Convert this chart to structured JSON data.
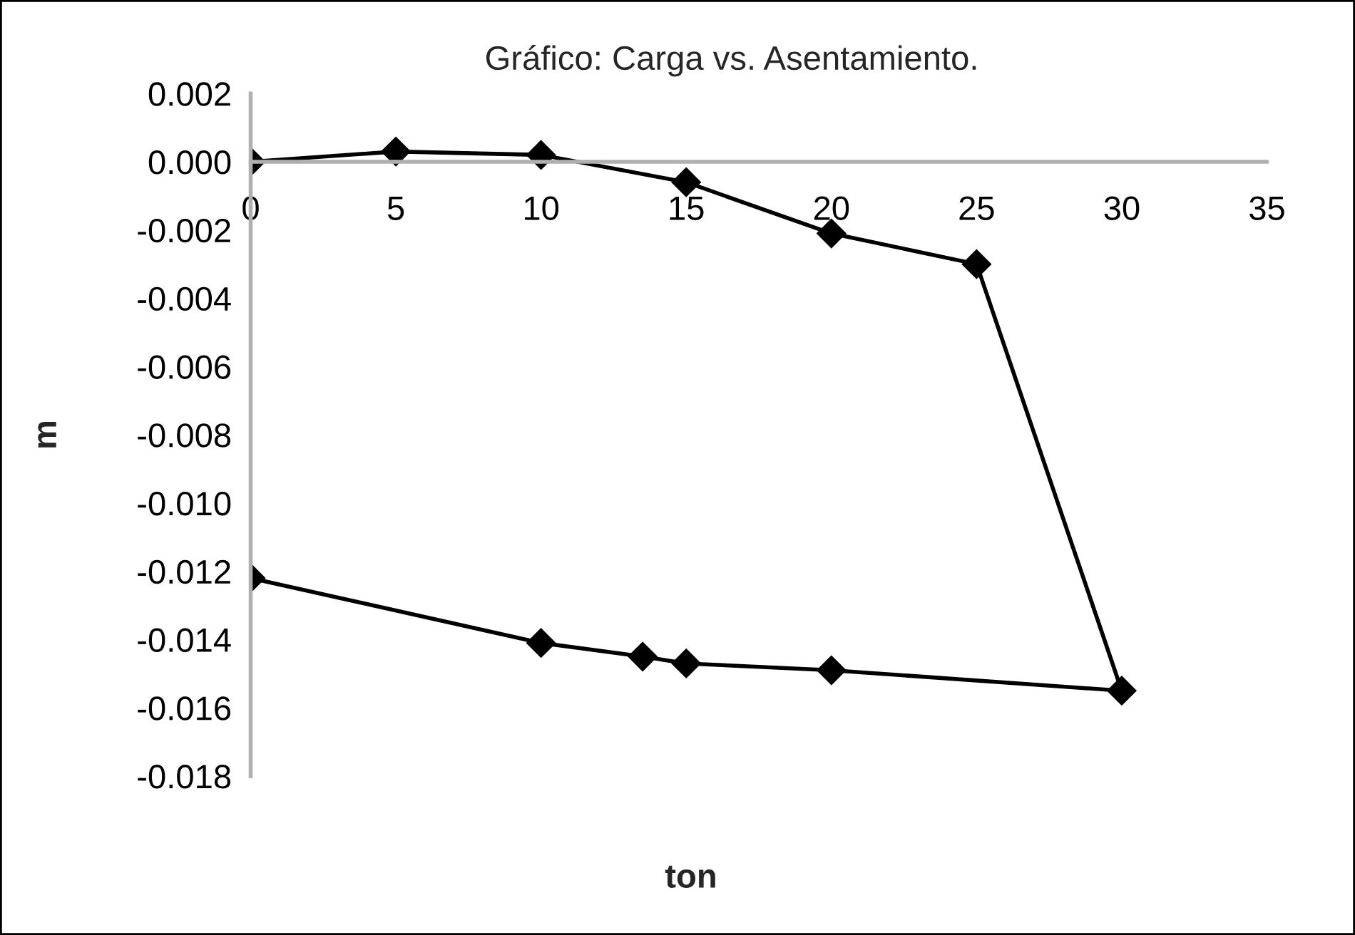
{
  "chart_data": {
    "type": "line",
    "title": "Gráfico: Carga vs. Asentamiento.",
    "xlabel": "ton",
    "ylabel": "m",
    "series": [
      {
        "color": "#000000",
        "x": [
          0,
          5,
          10,
          15,
          20,
          25,
          30,
          20,
          15,
          13.5,
          10,
          0
        ],
        "values": [
          0.0,
          0.0003,
          0.0002,
          -0.0006,
          -0.0021,
          -0.003,
          -0.0155,
          -0.0149,
          -0.0147,
          -0.0145,
          -0.0141,
          -0.0122
        ]
      }
    ],
    "xlim": [
      0,
      35
    ],
    "xticks": [
      0,
      5,
      10,
      15,
      20,
      25,
      30,
      35
    ],
    "ylim": [
      -0.018,
      0.002
    ],
    "yticks": [
      {
        "value": 0.002,
        "label": "0.002"
      },
      {
        "value": 0.0,
        "label": "0.000"
      },
      {
        "value": -0.002,
        "label": "-0.002"
      },
      {
        "value": -0.004,
        "label": "-0.004"
      },
      {
        "value": -0.006,
        "label": "-0.006"
      },
      {
        "value": -0.008,
        "label": "-0.008"
      },
      {
        "value": -0.01,
        "label": "-0.010"
      },
      {
        "value": -0.012,
        "label": "-0.012"
      },
      {
        "value": -0.014,
        "label": "-0.014"
      },
      {
        "value": -0.016,
        "label": "-0.016"
      },
      {
        "value": -0.018,
        "label": "-0.018"
      }
    ],
    "marker": "diamond",
    "line_style": "solid"
  }
}
